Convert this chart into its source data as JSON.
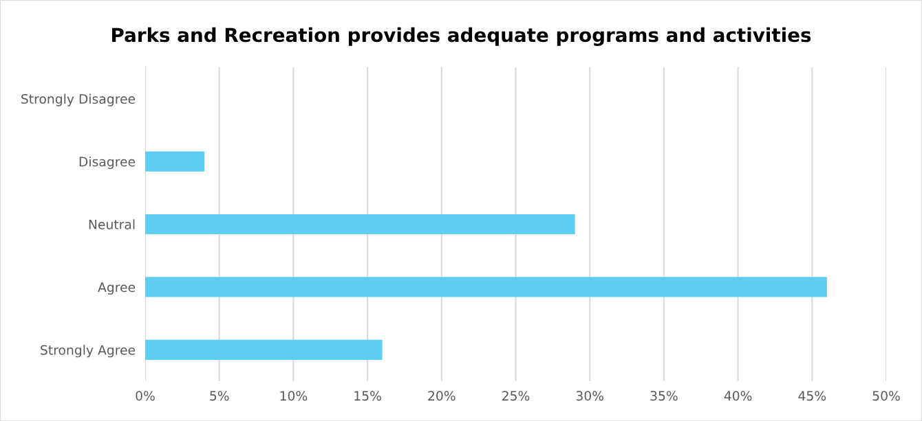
{
  "chart_data": {
    "type": "bar",
    "orientation": "horizontal",
    "title": "Parks and Recreation provides adequate programs and activities",
    "categories": [
      "Strongly Disagree",
      "Disagree",
      "Neutral",
      "Agree",
      "Strongly Agree"
    ],
    "values": [
      0,
      4,
      29,
      46,
      16
    ],
    "color": "#5ecdf4",
    "xlim": [
      0,
      50
    ],
    "xticks": [
      {
        "value": 0,
        "label": "0%"
      },
      {
        "value": 5,
        "label": "5%"
      },
      {
        "value": 10,
        "label": "10%"
      },
      {
        "value": 15,
        "label": "15%"
      },
      {
        "value": 20,
        "label": "20%"
      },
      {
        "value": 25,
        "label": "25%"
      },
      {
        "value": 30,
        "label": "30%"
      },
      {
        "value": 35,
        "label": "35%"
      },
      {
        "value": 40,
        "label": "40%"
      },
      {
        "value": 45,
        "label": "45%"
      },
      {
        "value": 50,
        "label": "50%"
      }
    ],
    "grid": "x"
  }
}
